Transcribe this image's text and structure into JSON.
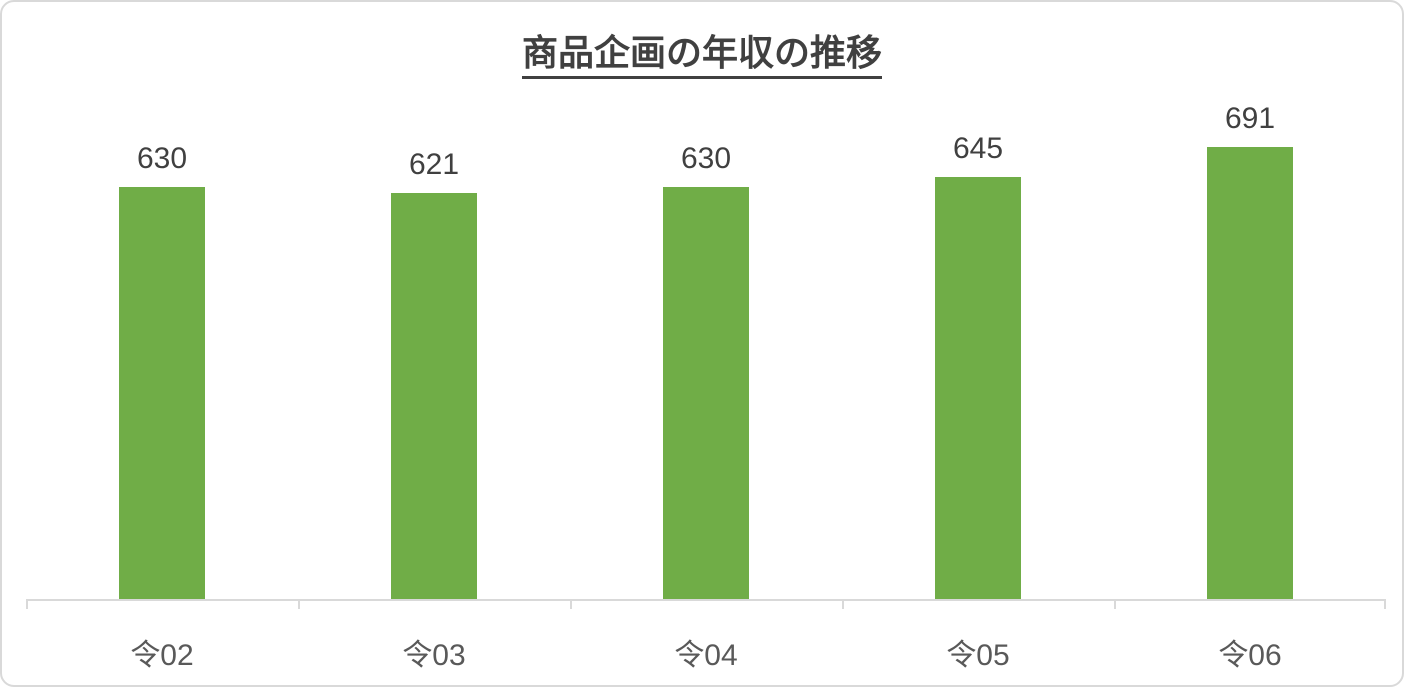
{
  "chart_data": {
    "type": "bar",
    "title": "商品企画の年収の推移",
    "categories": [
      "令02",
      "令03",
      "令04",
      "令05",
      "令06"
    ],
    "values": [
      630,
      621,
      630,
      645,
      691
    ],
    "xlabel": "",
    "ylabel": "",
    "ylim": [
      0,
      800
    ],
    "grid": false,
    "legend": false,
    "data_labels_shown": true,
    "bar_color": "#70AD47"
  },
  "colors": {
    "bar": "#70AD47",
    "title_text": "#404040",
    "data_label_text": "#404040",
    "axis_label_text": "#595959",
    "axis_line": "#d9d9d9",
    "frame_border": "#d9d9d9"
  }
}
